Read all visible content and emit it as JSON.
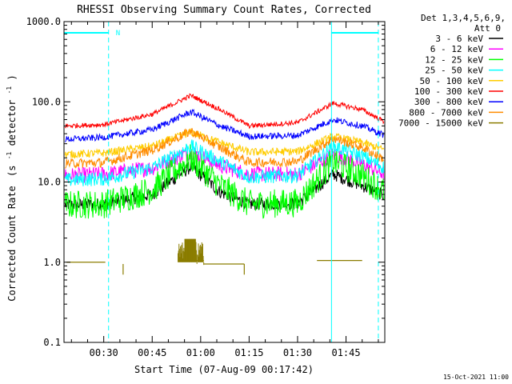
{
  "chart_data": {
    "type": "line",
    "title": "RHESSI Observing Summary Count Rates, Corrected",
    "xlabel": "Start Time (07-Aug-09 00:17:42)",
    "ylabel": "Corrected Count Rate",
    "ylabel_paren": "(s",
    "ylabel_mid": " detector",
    "ylabel_exp": "-1",
    "ylabel_close": ")",
    "yscale": "log",
    "ylim": [
      0.1,
      1000
    ],
    "xlim_minutes": [
      17.7,
      117
    ],
    "x_ticks": [
      {
        "m": 30,
        "label": "00:30"
      },
      {
        "m": 45,
        "label": "00:45"
      },
      {
        "m": 60,
        "label": "01:00"
      },
      {
        "m": 75,
        "label": "01:15"
      },
      {
        "m": 90,
        "label": "01:30"
      },
      {
        "m": 105,
        "label": "01:45"
      }
    ],
    "y_ticks": [
      {
        "v": 0.1,
        "label": "0.1"
      },
      {
        "v": 1,
        "label": "1.0"
      },
      {
        "v": 10,
        "label": "10.0"
      },
      {
        "v": 100,
        "label": "100.0"
      },
      {
        "v": 1000,
        "label": "1000.0"
      }
    ],
    "legend_header": [
      "Det 1,3,4,5,6,9,",
      "Att 0"
    ],
    "legend_position": "right",
    "series": [
      {
        "name": "3 - 6 keV",
        "color": "#000000",
        "values": [
          [
            18,
            5.2
          ],
          [
            30,
            5.3
          ],
          [
            45,
            7
          ],
          [
            57,
            15.5
          ],
          [
            66,
            7.5
          ],
          [
            75,
            5.3
          ],
          [
            90,
            5.4
          ],
          [
            101,
            12.5
          ],
          [
            110,
            9
          ],
          [
            117,
            6.8
          ]
        ]
      },
      {
        "name": "6 - 12 keV",
        "color": "#ff00ff",
        "values": [
          [
            18,
            12
          ],
          [
            30,
            12.5
          ],
          [
            45,
            15
          ],
          [
            57,
            24
          ],
          [
            66,
            16
          ],
          [
            75,
            12.5
          ],
          [
            90,
            12.5
          ],
          [
            101,
            22
          ],
          [
            110,
            17
          ],
          [
            117,
            12.5
          ]
        ]
      },
      {
        "name": "12 - 25 keV",
        "color": "#00ff00",
        "values": [
          [
            18,
            5.2
          ],
          [
            30,
            5.3
          ],
          [
            45,
            8
          ],
          [
            57,
            20
          ],
          [
            66,
            9
          ],
          [
            75,
            5.3
          ],
          [
            90,
            5.5
          ],
          [
            101,
            18
          ],
          [
            110,
            12
          ],
          [
            117,
            7.5
          ]
        ]
      },
      {
        "name": "25 - 50 keV",
        "color": "#00ffff",
        "values": [
          [
            18,
            10.5
          ],
          [
            30,
            11
          ],
          [
            45,
            15
          ],
          [
            57,
            28
          ],
          [
            66,
            18
          ],
          [
            75,
            11.5
          ],
          [
            90,
            12
          ],
          [
            101,
            28
          ],
          [
            110,
            21
          ],
          [
            117,
            15
          ]
        ]
      },
      {
        "name": "50 - 100 keV",
        "color": "#ffcc00",
        "values": [
          [
            18,
            22
          ],
          [
            30,
            23
          ],
          [
            45,
            28
          ],
          [
            57,
            42
          ],
          [
            66,
            31
          ],
          [
            75,
            23.5
          ],
          [
            90,
            24
          ],
          [
            101,
            37
          ],
          [
            110,
            31
          ],
          [
            117,
            25
          ]
        ]
      },
      {
        "name": "100 - 300 keV",
        "color": "#ff0000",
        "values": [
          [
            18,
            50
          ],
          [
            30,
            52
          ],
          [
            45,
            70
          ],
          [
            57,
            120
          ],
          [
            66,
            80
          ],
          [
            75,
            50
          ],
          [
            90,
            55
          ],
          [
            101,
            96
          ],
          [
            110,
            80
          ],
          [
            117,
            56
          ]
        ]
      },
      {
        "name": "300 - 800 keV",
        "color": "#0000ff",
        "values": [
          [
            18,
            34
          ],
          [
            30,
            36
          ],
          [
            45,
            45
          ],
          [
            57,
            75
          ],
          [
            66,
            50
          ],
          [
            75,
            37
          ],
          [
            90,
            38
          ],
          [
            101,
            60
          ],
          [
            110,
            50
          ],
          [
            117,
            38
          ]
        ]
      },
      {
        "name": "800 - 7000 keV",
        "color": "#ff8c00",
        "values": [
          [
            18,
            17
          ],
          [
            30,
            17.5
          ],
          [
            45,
            25
          ],
          [
            57,
            43
          ],
          [
            66,
            27
          ],
          [
            75,
            17.5
          ],
          [
            90,
            18
          ],
          [
            101,
            35
          ],
          [
            110,
            27
          ],
          [
            117,
            19
          ]
        ]
      },
      {
        "name": "7000 - 15000 keV",
        "color": "#8b7d00",
        "values": [
          [
            18.5,
            1
          ],
          [
            30,
            1
          ]
        ]
      }
    ],
    "fragment_series": {
      "name": "7000 - 15000 keV",
      "segments": [
        {
          "x": [
            18.5,
            30.5
          ],
          "y": 1.0
        },
        {
          "x": [
            53,
            61
          ],
          "y": 1.05
        },
        {
          "x": [
            55,
            58
          ],
          "y": 1.9
        },
        {
          "x": [
            61,
            73.5
          ],
          "y": 0.95
        },
        {
          "x": [
            96,
            110
          ],
          "y": 1.05
        }
      ]
    },
    "annotations": {
      "marker_label": "N",
      "night_intervals": [
        [
          17.7,
          31.5
        ],
        [
          100.5,
          115
        ]
      ],
      "timestamp": "15-Oct-2021 11:00"
    }
  }
}
